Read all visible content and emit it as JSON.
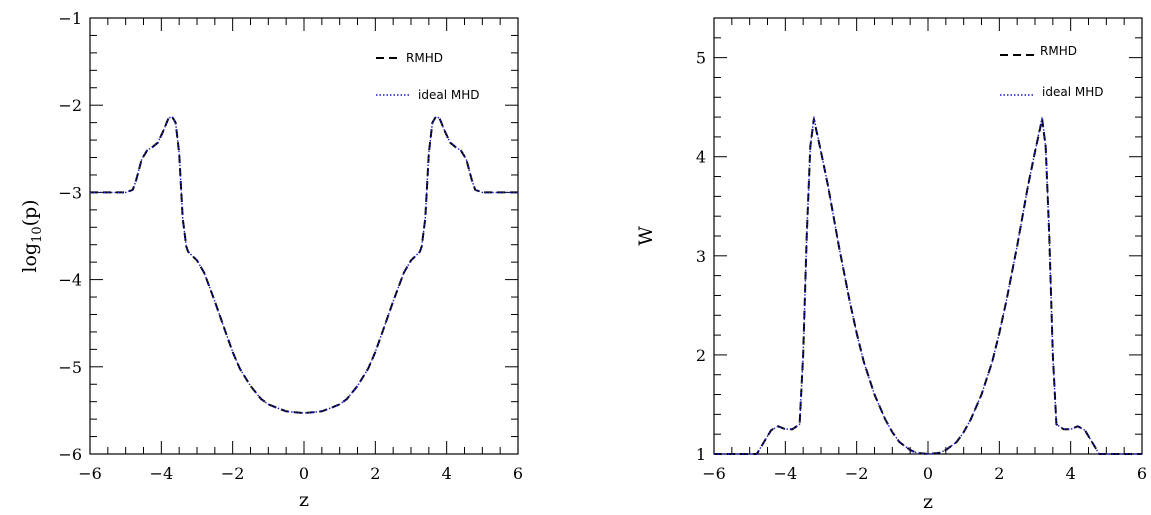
{
  "chart_data": [
    {
      "type": "line",
      "title": "",
      "xlabel": "z",
      "ylabel": "log10(p)",
      "ylabel_base": "log",
      "ylabel_sub": "10",
      "ylabel_tail": "(p)",
      "xlim": [
        -6,
        6
      ],
      "ylim": [
        -6,
        -1
      ],
      "xticks": [
        -6,
        -4,
        -2,
        0,
        2,
        4,
        6
      ],
      "yticks": [
        -6,
        -5,
        -4,
        -3,
        -2,
        -1
      ],
      "xtick_labels": [
        "−6",
        "−4",
        "−2",
        "0",
        "2",
        "4",
        "6"
      ],
      "ytick_labels": [
        "−6",
        "−5",
        "−4",
        "−3",
        "−2",
        "−1"
      ],
      "legend_position": "top-right",
      "x": [
        -6,
        -5,
        -4.8,
        -4.7,
        -4.55,
        -4.4,
        -4.25,
        -4.1,
        -3.95,
        -3.8,
        -3.7,
        -3.6,
        -3.5,
        -3.4,
        -3.3,
        -3.25,
        -3.0,
        -2.8,
        -2.5,
        -2.2,
        -2.0,
        -1.8,
        -1.5,
        -1.2,
        -1.0,
        -0.7,
        -0.5,
        -0.3,
        0,
        0.3,
        0.5,
        0.7,
        1.0,
        1.2,
        1.5,
        1.8,
        2.0,
        2.2,
        2.5,
        2.8,
        3.0,
        3.25,
        3.3,
        3.4,
        3.5,
        3.6,
        3.7,
        3.8,
        3.95,
        4.1,
        4.25,
        4.4,
        4.55,
        4.7,
        4.8,
        5,
        6
      ],
      "series": [
        {
          "name": "RMHD",
          "color": "#000000",
          "dash": "dashed",
          "values": [
            -3.0,
            -3.0,
            -2.97,
            -2.85,
            -2.62,
            -2.52,
            -2.48,
            -2.43,
            -2.3,
            -2.15,
            -2.13,
            -2.2,
            -2.55,
            -3.3,
            -3.62,
            -3.68,
            -3.78,
            -3.92,
            -4.25,
            -4.6,
            -4.83,
            -5.02,
            -5.22,
            -5.37,
            -5.43,
            -5.48,
            -5.51,
            -5.52,
            -5.53,
            -5.52,
            -5.51,
            -5.48,
            -5.43,
            -5.37,
            -5.22,
            -5.02,
            -4.83,
            -4.6,
            -4.25,
            -3.92,
            -3.78,
            -3.68,
            -3.62,
            -3.3,
            -2.55,
            -2.2,
            -2.13,
            -2.15,
            -2.3,
            -2.43,
            -2.48,
            -2.52,
            -2.62,
            -2.85,
            -2.97,
            -3.0,
            -3.0
          ]
        },
        {
          "name": "ideal MHD",
          "color": "#1a1acc",
          "dash": "dotted",
          "values": [
            -3.0,
            -3.0,
            -2.97,
            -2.85,
            -2.62,
            -2.52,
            -2.48,
            -2.43,
            -2.3,
            -2.15,
            -2.13,
            -2.2,
            -2.55,
            -3.3,
            -3.62,
            -3.68,
            -3.78,
            -3.92,
            -4.25,
            -4.6,
            -4.83,
            -5.02,
            -5.22,
            -5.37,
            -5.43,
            -5.48,
            -5.51,
            -5.52,
            -5.53,
            -5.52,
            -5.51,
            -5.48,
            -5.43,
            -5.37,
            -5.22,
            -5.02,
            -4.83,
            -4.6,
            -4.25,
            -3.92,
            -3.78,
            -3.68,
            -3.62,
            -3.3,
            -2.55,
            -2.2,
            -2.13,
            -2.15,
            -2.3,
            -2.43,
            -2.48,
            -2.52,
            -2.62,
            -2.85,
            -2.97,
            -3.0,
            -3.0
          ]
        }
      ]
    },
    {
      "type": "line",
      "title": "",
      "xlabel": "z",
      "ylabel": "W",
      "xlim": [
        -6,
        6
      ],
      "ylim": [
        1,
        5.4
      ],
      "xticks": [
        -6,
        -4,
        -2,
        0,
        2,
        4,
        6
      ],
      "yticks": [
        1,
        2,
        3,
        4,
        5
      ],
      "xtick_labels": [
        "−6",
        "−4",
        "−2",
        "0",
        "2",
        "4",
        "6"
      ],
      "ytick_labels": [
        "1",
        "2",
        "3",
        "4",
        "5"
      ],
      "legend_position": "top-right",
      "x": [
        -6,
        -4.8,
        -4.6,
        -4.4,
        -4.2,
        -4.0,
        -3.8,
        -3.6,
        -3.5,
        -3.4,
        -3.3,
        -3.2,
        -3.0,
        -2.8,
        -2.5,
        -2.2,
        -2.0,
        -1.8,
        -1.5,
        -1.2,
        -1.0,
        -0.8,
        -0.5,
        -0.3,
        0,
        0.3,
        0.5,
        0.8,
        1.0,
        1.2,
        1.5,
        1.8,
        2.0,
        2.2,
        2.5,
        2.8,
        3.0,
        3.2,
        3.3,
        3.4,
        3.5,
        3.6,
        3.8,
        4.0,
        4.2,
        4.4,
        4.6,
        4.8,
        6
      ],
      "series": [
        {
          "name": "RMHD",
          "color": "#000000",
          "dash": "dashed",
          "values": [
            1.0,
            1.0,
            1.12,
            1.24,
            1.28,
            1.25,
            1.25,
            1.3,
            2.0,
            3.2,
            4.1,
            4.38,
            4.05,
            3.7,
            3.1,
            2.55,
            2.22,
            1.93,
            1.6,
            1.35,
            1.22,
            1.12,
            1.04,
            1.01,
            1.0,
            1.01,
            1.04,
            1.12,
            1.22,
            1.35,
            1.6,
            1.93,
            2.22,
            2.55,
            3.1,
            3.7,
            4.05,
            4.38,
            4.1,
            3.2,
            2.0,
            1.3,
            1.25,
            1.25,
            1.28,
            1.24,
            1.12,
            1.0,
            1.0
          ]
        },
        {
          "name": "ideal MHD",
          "color": "#1a1acc",
          "dash": "dotted",
          "values": [
            1.0,
            1.0,
            1.12,
            1.24,
            1.28,
            1.25,
            1.25,
            1.3,
            2.0,
            3.2,
            4.1,
            4.4,
            4.05,
            3.7,
            3.1,
            2.55,
            2.22,
            1.93,
            1.6,
            1.35,
            1.22,
            1.12,
            1.04,
            1.01,
            1.0,
            1.01,
            1.04,
            1.12,
            1.22,
            1.35,
            1.6,
            1.93,
            2.22,
            2.55,
            3.1,
            3.7,
            4.05,
            4.4,
            4.1,
            3.2,
            2.0,
            1.3,
            1.25,
            1.25,
            1.28,
            1.24,
            1.12,
            1.0,
            1.0
          ]
        }
      ]
    }
  ]
}
